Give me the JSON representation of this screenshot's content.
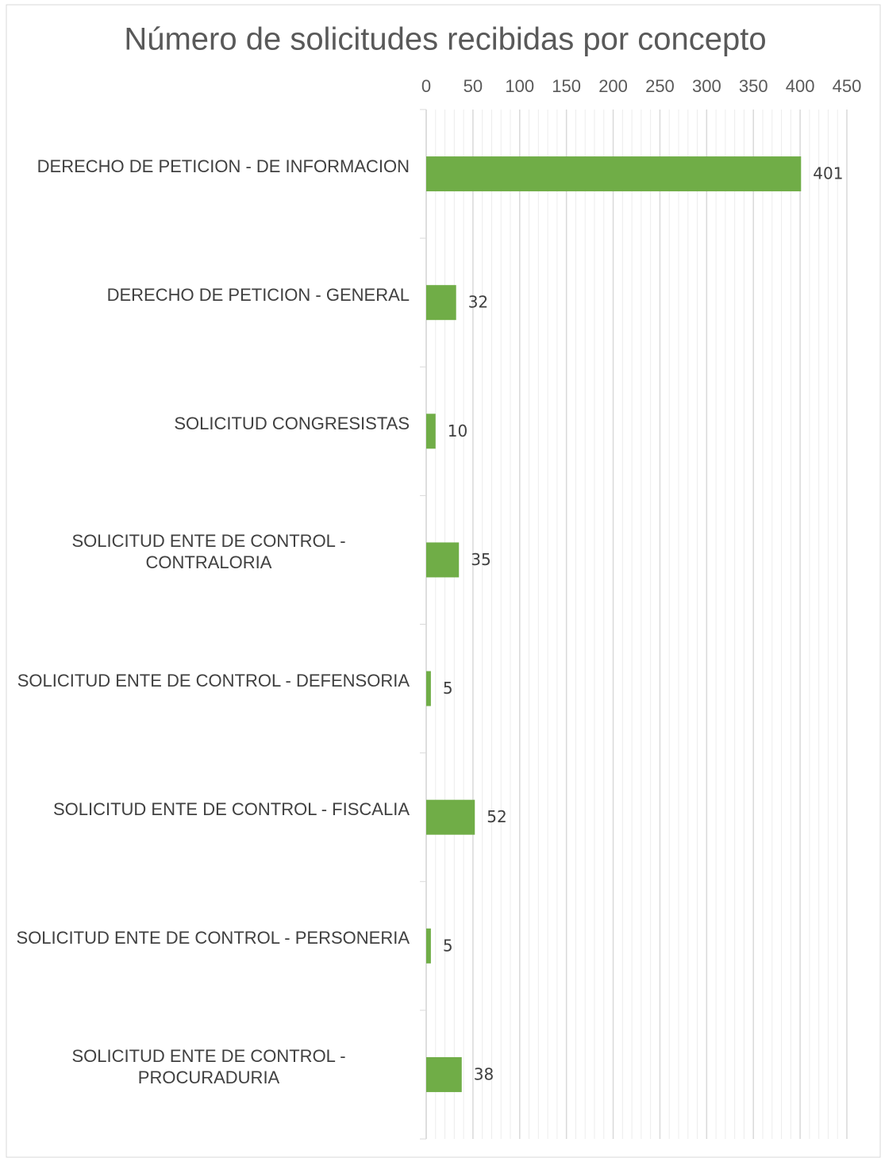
{
  "chart_data": {
    "type": "hbar",
    "title": "Número de solicitudes recibidas por concepto",
    "categories": [
      "DERECHO DE PETICION - DE INFORMACION",
      "DERECHO DE PETICION - GENERAL",
      "SOLICITUD CONGRESISTAS",
      "SOLICITUD ENTE DE CONTROL - CONTRALORIA",
      "SOLICITUD ENTE DE CONTROL - DEFENSORIA",
      "SOLICITUD ENTE DE CONTROL - FISCALIA",
      "SOLICITUD ENTE DE CONTROL - PERSONERIA",
      "SOLICITUD ENTE DE CONTROL - PROCURADURIA"
    ],
    "values": [
      401,
      32,
      10,
      35,
      5,
      52,
      5,
      38
    ],
    "color": "#70ad47",
    "xlim": [
      0,
      450
    ],
    "xticks": [
      0,
      50,
      100,
      150,
      200,
      250,
      300,
      350,
      400,
      450
    ],
    "grid": true,
    "minor_grid": true
  }
}
